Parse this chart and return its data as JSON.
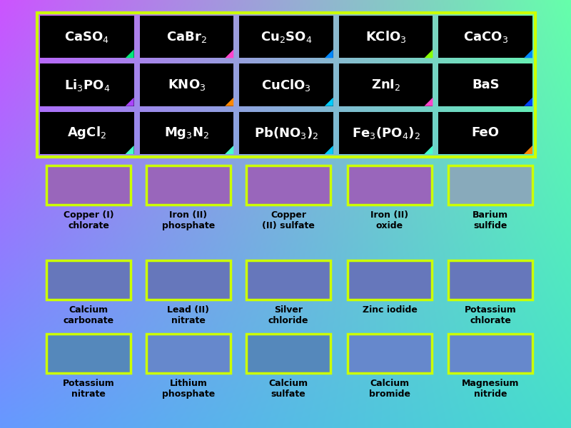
{
  "top_grid_formulas_raw": [
    [
      "CaSO$_4$",
      "CaBr$_2$",
      "Cu$_2$SO$_4$",
      "KClO$_3$",
      "CaCO$_3$"
    ],
    [
      "Li$_3$PO$_4$",
      "KNO$_3$",
      "CuClO$_3$",
      "ZnI$_2$",
      "BaS"
    ],
    [
      "AgCl$_2$",
      "Mg$_3$N$_2$",
      "Pb(NO$_3$)$_2$",
      "Fe$_3$(PO$_4$)$_2$",
      "FeO"
    ]
  ],
  "answer_rows": [
    [
      "Copper (I)\nchlorate",
      "Iron (II)\nphosphate",
      "Copper\n(II) sulfate",
      "Iron (II)\noxide",
      "Barium\nsulfide"
    ],
    [
      "Calcium\ncarbonate",
      "Lead (II)\nnitrate",
      "Silver\nchloride",
      "Zinc iodide",
      "Potassium\nchlorate"
    ],
    [
      "Potassium\nnitrate",
      "Lithium\nphosphate",
      "Calcium\nsulfate",
      "Calcium\nbromide",
      "Magnesium\nnitride"
    ]
  ],
  "corner_colors_row0": [
    "#00e87a",
    "#ff44cc",
    "#0088ff",
    "#88ff00",
    "#0088ff"
  ],
  "corner_colors_row1": [
    "#aa44ff",
    "#ff8800",
    "#00ccff",
    "#ff44cc",
    "#0044ff"
  ],
  "corner_colors_row2": [
    "#44ffcc",
    "#44ffcc",
    "#00ccff",
    "#44ffcc",
    "#ff8800"
  ],
  "ans_row1_colors": [
    "#9966bb",
    "#9966bb",
    "#9966bb",
    "#9966bb",
    "#88aabb"
  ],
  "ans_row2_colors": [
    "#6677bb",
    "#6677bb",
    "#6677bb",
    "#6677bb",
    "#6677bb"
  ],
  "ans_row3_colors": [
    "#5588bb",
    "#6688cc",
    "#5588bb",
    "#6688cc",
    "#6688cc"
  ]
}
